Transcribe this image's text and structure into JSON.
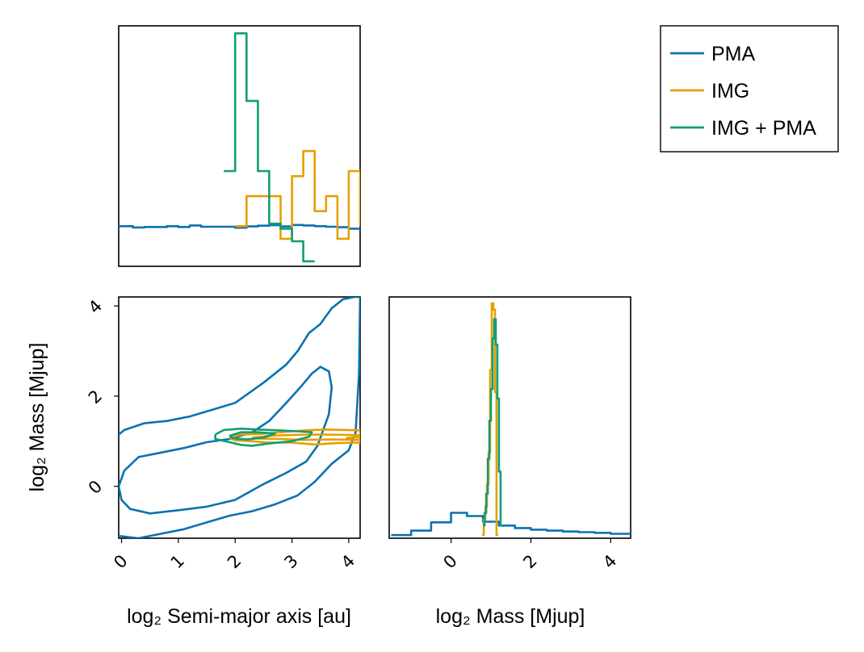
{
  "colors": {
    "PMA": "#0a72b2",
    "IMG": "#e69f00",
    "IMG + PMA": "#109e73"
  },
  "legend": {
    "entries": [
      "PMA",
      "IMG",
      "IMG + PMA"
    ],
    "position": "top-right"
  },
  "chart_data": [
    {
      "type": "histogram",
      "name": "log2 Semi-major axis marginal",
      "xlim": [
        -0.05,
        4.2
      ],
      "series": [
        {
          "name": "PMA",
          "x": [
            -0.2,
            0.2,
            0.4,
            0.8,
            1.0,
            1.2,
            1.4,
            1.8,
            2.0,
            2.2,
            2.4,
            2.6,
            2.8,
            3.0,
            3.2,
            3.4,
            3.6,
            3.8,
            4.0,
            4.2
          ],
          "values": [
            1.0,
            0.95,
            0.97,
            1.0,
            0.97,
            1.03,
            0.98,
            0.98,
            0.94,
            0.99,
            1.02,
            1.04,
            0.99,
            1.05,
            1.03,
            1.0,
            0.98,
            0.96,
            0.9
          ]
        },
        {
          "name": "IMG",
          "x": [
            2.0,
            2.2,
            2.6,
            2.8,
            3.0,
            3.2,
            3.4,
            3.6,
            3.8,
            4.0,
            4.2
          ],
          "values": [
            1.0,
            2.2,
            2.2,
            0.5,
            3.0,
            4.0,
            1.6,
            2.2,
            0.5,
            3.2,
            1.0
          ]
        },
        {
          "name": "IMG + PMA",
          "x": [
            1.8,
            2.0,
            2.2,
            2.4,
            2.6,
            2.8,
            3.0,
            3.2,
            3.4
          ],
          "values": [
            3.2,
            8.7,
            6.0,
            3.2,
            1.1,
            0.9,
            0.4,
            -0.4
          ]
        }
      ]
    },
    {
      "type": "contour",
      "name": "joint",
      "xlabel": "log₂ Semi-major axis [au]",
      "ylabel": "log₂ Mass [Mjup]",
      "xlim": [
        -0.05,
        4.2
      ],
      "ylim": [
        -1.15,
        4.2
      ],
      "xticks": [
        0,
        1,
        2,
        3,
        4
      ],
      "yticks": [
        0,
        2,
        4
      ],
      "series": [
        {
          "name": "PMA",
          "contours": [
            [
              [
                -0.05,
                1.15
              ],
              [
                0.05,
                1.25
              ],
              [
                0.4,
                1.4
              ],
              [
                0.8,
                1.45
              ],
              [
                1.2,
                1.55
              ],
              [
                1.6,
                1.7
              ],
              [
                2.0,
                1.85
              ],
              [
                2.5,
                2.3
              ],
              [
                2.9,
                2.7
              ],
              [
                3.1,
                3.0
              ],
              [
                3.3,
                3.4
              ],
              [
                3.5,
                3.6
              ],
              [
                3.7,
                3.95
              ],
              [
                3.9,
                4.15
              ],
              [
                4.1,
                4.2
              ],
              [
                4.2,
                4.2
              ]
            ],
            [
              [
                -0.05,
                -1.1
              ],
              [
                0.3,
                -1.15
              ],
              [
                0.7,
                -1.05
              ],
              [
                1.1,
                -0.95
              ],
              [
                1.5,
                -0.8
              ],
              [
                1.9,
                -0.65
              ],
              [
                2.3,
                -0.55
              ],
              [
                2.7,
                -0.4
              ],
              [
                3.1,
                -0.2
              ],
              [
                3.4,
                0.1
              ],
              [
                3.7,
                0.5
              ],
              [
                4.0,
                0.8
              ],
              [
                4.12,
                1.2
              ],
              [
                4.18,
                2.5
              ],
              [
                4.2,
                4.2
              ]
            ],
            [
              [
                -0.05,
                0.0
              ],
              [
                0.05,
                0.35
              ],
              [
                0.3,
                0.65
              ],
              [
                0.7,
                0.75
              ],
              [
                1.1,
                0.85
              ],
              [
                1.5,
                0.98
              ],
              [
                1.9,
                1.05
              ],
              [
                2.3,
                1.2
              ],
              [
                2.6,
                1.45
              ],
              [
                2.9,
                1.85
              ],
              [
                3.15,
                2.2
              ],
              [
                3.35,
                2.5
              ],
              [
                3.5,
                2.65
              ],
              [
                3.65,
                2.55
              ],
              [
                3.7,
                2.2
              ],
              [
                3.65,
                1.6
              ],
              [
                3.45,
                0.9
              ],
              [
                3.25,
                0.55
              ],
              [
                2.9,
                0.3
              ],
              [
                2.5,
                0.05
              ],
              [
                2.0,
                -0.3
              ],
              [
                1.5,
                -0.45
              ],
              [
                1.0,
                -0.53
              ],
              [
                0.5,
                -0.6
              ],
              [
                0.15,
                -0.5
              ],
              [
                0.0,
                -0.3
              ],
              [
                -0.05,
                0.0
              ]
            ]
          ]
        },
        {
          "name": "IMG",
          "contours": [
            [
              [
                1.9,
                1.08
              ],
              [
                2.1,
                1.15
              ],
              [
                2.4,
                1.16
              ],
              [
                2.8,
                1.2
              ],
              [
                3.2,
                1.24
              ],
              [
                3.6,
                1.26
              ],
              [
                4.0,
                1.25
              ],
              [
                4.2,
                1.24
              ],
              [
                4.2,
                0.97
              ],
              [
                3.8,
                0.96
              ],
              [
                3.4,
                0.93
              ],
              [
                3.0,
                0.97
              ],
              [
                2.6,
                0.97
              ],
              [
                2.3,
                1.0
              ],
              [
                2.0,
                1.02
              ],
              [
                1.9,
                1.08
              ]
            ],
            [
              [
                2.3,
                1.08
              ],
              [
                2.6,
                1.12
              ],
              [
                3.0,
                1.14
              ],
              [
                3.5,
                1.15
              ],
              [
                4.0,
                1.14
              ],
              [
                4.2,
                1.13
              ],
              [
                4.2,
                1.03
              ],
              [
                3.7,
                1.04
              ],
              [
                3.2,
                1.03
              ],
              [
                2.8,
                1.05
              ],
              [
                2.4,
                1.06
              ],
              [
                2.3,
                1.08
              ]
            ],
            [
              [
                3.95,
                1.07
              ],
              [
                4.1,
                1.09
              ],
              [
                4.2,
                1.09
              ],
              [
                4.2,
                1.03
              ],
              [
                4.05,
                1.03
              ],
              [
                3.95,
                1.07
              ]
            ]
          ]
        },
        {
          "name": "IMG + PMA",
          "contours": [
            [
              [
                1.65,
                1.15
              ],
              [
                1.8,
                1.25
              ],
              [
                2.1,
                1.28
              ],
              [
                2.4,
                1.26
              ],
              [
                2.8,
                1.24
              ],
              [
                3.1,
                1.22
              ],
              [
                3.35,
                1.2
              ],
              [
                3.3,
                1.1
              ],
              [
                3.0,
                1.0
              ],
              [
                2.6,
                0.95
              ],
              [
                2.3,
                0.9
              ],
              [
                2.1,
                0.92
              ],
              [
                1.9,
                0.98
              ],
              [
                1.65,
                1.05
              ],
              [
                1.65,
                1.15
              ]
            ],
            [
              [
                1.9,
                1.12
              ],
              [
                2.1,
                1.2
              ],
              [
                2.4,
                1.2
              ],
              [
                2.7,
                1.17
              ],
              [
                2.5,
                1.08
              ],
              [
                2.2,
                1.04
              ],
              [
                1.95,
                1.07
              ],
              [
                1.9,
                1.12
              ]
            ]
          ]
        }
      ]
    },
    {
      "type": "histogram",
      "name": "log2 Mass marginal",
      "xlabel": "log₂ Mass [Mjup]",
      "xlim": [
        -1.55,
        4.5
      ],
      "xticks": [
        0,
        2,
        4
      ],
      "series": [
        {
          "name": "PMA",
          "x": [
            -1.5,
            -1.0,
            -0.5,
            0.0,
            0.4,
            0.8,
            1.2,
            1.6,
            2.0,
            2.4,
            2.8,
            3.2,
            3.6,
            4.0,
            4.5
          ],
          "values": [
            0.0,
            0.14,
            0.4,
            0.7,
            0.6,
            0.42,
            0.3,
            0.22,
            0.17,
            0.14,
            0.11,
            0.09,
            0.07,
            0.04
          ]
        },
        {
          "name": "IMG",
          "x": [
            0.78,
            0.82,
            0.86,
            0.9,
            0.94,
            0.98,
            1.02,
            1.06,
            1.1,
            1.14,
            1.18
          ],
          "values": [
            0.0,
            0.5,
            0.9,
            1.6,
            2.6,
            5.2,
            7.3,
            7.1,
            4.5,
            0.0
          ]
        },
        {
          "name": "IMG + PMA",
          "x": [
            0.8,
            0.84,
            0.88,
            0.92,
            0.96,
            1.0,
            1.04,
            1.08,
            1.12,
            1.16,
            1.2,
            1.24,
            1.28
          ],
          "values": [
            0.3,
            0.7,
            1.3,
            2.4,
            3.6,
            4.6,
            6.2,
            6.8,
            6.0,
            4.3,
            2.0,
            0.3
          ]
        }
      ]
    }
  ]
}
